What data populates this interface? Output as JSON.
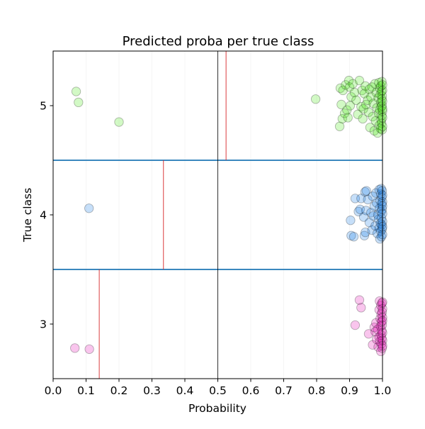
{
  "chart_data": {
    "type": "scatter",
    "title": "Predicted proba per true class",
    "xlabel": "Probability",
    "ylabel": "True class",
    "xlim": [
      0.0,
      1.0
    ],
    "ylim": [
      2.5,
      5.5
    ],
    "xticks": [
      "0.0",
      "0.1",
      "0.2",
      "0.3",
      "0.4",
      "0.5",
      "0.6",
      "0.7",
      "0.8",
      "0.9",
      "1.0"
    ],
    "yticks": [
      "3",
      "4",
      "5"
    ],
    "x_grid": true,
    "reference_line_x": 0.5,
    "class_separators_y": [
      3.5,
      4.5
    ],
    "threshold_lines": [
      {
        "class": 3,
        "x": 0.14
      },
      {
        "class": 4,
        "x": 0.335
      },
      {
        "class": 5,
        "x": 0.525
      }
    ],
    "colors": {
      "class_3": "#e619b7",
      "class_4": "#1a80e6",
      "class_5": "#4ce619",
      "separator": "#1f77b4",
      "threshold": "#d62728",
      "reference": "#000000"
    },
    "series": [
      {
        "class": 3,
        "points": [
          [
            0.066,
            2.78
          ],
          [
            0.11,
            2.77
          ],
          [
            0.917,
            2.99
          ],
          [
            0.93,
            3.22
          ],
          [
            0.935,
            3.15
          ],
          [
            0.958,
            2.91
          ],
          [
            0.97,
            2.81
          ],
          [
            0.975,
            2.97
          ],
          [
            0.978,
            2.93
          ],
          [
            0.98,
            3.01
          ],
          [
            0.982,
            2.86
          ],
          [
            0.985,
            2.95
          ],
          [
            0.987,
            2.79
          ],
          [
            0.99,
            3.13
          ],
          [
            0.99,
            2.88
          ],
          [
            0.991,
            3.21
          ],
          [
            0.992,
            2.84
          ],
          [
            0.993,
            3.05
          ],
          [
            0.994,
            2.98
          ],
          [
            0.995,
            3.17
          ],
          [
            0.995,
            2.75
          ],
          [
            0.996,
            2.9
          ],
          [
            0.996,
            3.09
          ],
          [
            0.997,
            2.82
          ],
          [
            0.997,
            3.02
          ],
          [
            0.998,
            2.94
          ],
          [
            0.998,
            3.19
          ],
          [
            0.998,
            2.87
          ],
          [
            0.999,
            3.11
          ],
          [
            0.999,
            2.78
          ],
          [
            0.999,
            2.99
          ],
          [
            1.0,
            3.06
          ],
          [
            1.0,
            2.85
          ],
          [
            1.0,
            3.14
          ],
          [
            1.0,
            2.92
          ],
          [
            1.0,
            3.2
          ],
          [
            1.0,
            2.8
          ],
          [
            1.0,
            3.03
          ]
        ]
      },
      {
        "class": 4,
        "points": [
          [
            0.109,
            4.06
          ],
          [
            0.903,
            3.95
          ],
          [
            0.905,
            3.81
          ],
          [
            0.913,
            3.8
          ],
          [
            0.917,
            4.15
          ],
          [
            0.927,
            4.03
          ],
          [
            0.932,
            4.05
          ],
          [
            0.935,
            4.15
          ],
          [
            0.943,
            3.98
          ],
          [
            0.945,
            3.81
          ],
          [
            0.947,
            4.21
          ],
          [
            0.948,
            3.84
          ],
          [
            0.95,
            4.04
          ],
          [
            0.951,
            4.22
          ],
          [
            0.955,
            4.14
          ],
          [
            0.96,
            3.93
          ],
          [
            0.965,
            4.02
          ],
          [
            0.968,
            3.86
          ],
          [
            0.97,
            4.17
          ],
          [
            0.972,
            3.99
          ],
          [
            0.975,
            4.08
          ],
          [
            0.978,
            3.9
          ],
          [
            0.98,
            4.2
          ],
          [
            0.982,
            4.11
          ],
          [
            0.984,
            3.83
          ],
          [
            0.986,
            4.0
          ],
          [
            0.988,
            3.96
          ],
          [
            0.99,
            4.23
          ],
          [
            0.99,
            3.88
          ],
          [
            0.991,
            4.06
          ],
          [
            0.992,
            3.78
          ],
          [
            0.993,
            4.13
          ],
          [
            0.994,
            3.92
          ],
          [
            0.995,
            4.19
          ],
          [
            0.995,
            3.85
          ],
          [
            0.996,
            4.03
          ],
          [
            0.996,
            4.24
          ],
          [
            0.997,
            3.97
          ],
          [
            0.997,
            3.8
          ],
          [
            0.998,
            4.1
          ],
          [
            0.998,
            3.91
          ],
          [
            0.998,
            4.16
          ],
          [
            0.999,
            3.87
          ],
          [
            0.999,
            4.05
          ],
          [
            0.999,
            4.22
          ],
          [
            1.0,
            3.94
          ],
          [
            1.0,
            4.12
          ],
          [
            1.0,
            3.82
          ],
          [
            1.0,
            4.01
          ],
          [
            1.0,
            4.18
          ],
          [
            1.0,
            3.89
          ],
          [
            1.0,
            4.08
          ]
        ]
      },
      {
        "class": 5,
        "points": [
          [
            0.07,
            5.13
          ],
          [
            0.077,
            5.03
          ],
          [
            0.2,
            4.85
          ],
          [
            0.797,
            5.06
          ],
          [
            0.87,
            4.81
          ],
          [
            0.872,
            5.16
          ],
          [
            0.875,
            5.01
          ],
          [
            0.878,
            4.88
          ],
          [
            0.88,
            5.14
          ],
          [
            0.885,
            4.93
          ],
          [
            0.888,
            5.19
          ],
          [
            0.892,
            4.96
          ],
          [
            0.895,
            4.89
          ],
          [
            0.898,
            5.23
          ],
          [
            0.9,
            5.17
          ],
          [
            0.902,
            5.0
          ],
          [
            0.905,
            5.08
          ],
          [
            0.91,
            5.2
          ],
          [
            0.915,
            5.12
          ],
          [
            0.92,
            5.05
          ],
          [
            0.925,
            4.92
          ],
          [
            0.93,
            5.23
          ],
          [
            0.935,
            4.99
          ],
          [
            0.938,
            5.14
          ],
          [
            0.94,
            4.88
          ],
          [
            0.942,
            4.97
          ],
          [
            0.945,
            5.11
          ],
          [
            0.948,
            5.18
          ],
          [
            0.95,
            5.01
          ],
          [
            0.955,
            5.05
          ],
          [
            0.958,
            4.94
          ],
          [
            0.96,
            5.15
          ],
          [
            0.962,
            4.8
          ],
          [
            0.965,
            5.08
          ],
          [
            0.968,
            5.17
          ],
          [
            0.97,
            4.9
          ],
          [
            0.972,
            5.02
          ],
          [
            0.975,
            4.77
          ],
          [
            0.977,
            5.2
          ],
          [
            0.979,
            4.86
          ],
          [
            0.981,
            5.12
          ],
          [
            0.983,
            4.98
          ],
          [
            0.985,
            4.75
          ],
          [
            0.987,
            5.07
          ],
          [
            0.988,
            4.93
          ],
          [
            0.989,
            5.21
          ],
          [
            0.99,
            4.82
          ],
          [
            0.991,
            5.16
          ],
          [
            0.992,
            4.96
          ],
          [
            0.993,
            5.1
          ],
          [
            0.994,
            4.79
          ],
          [
            0.995,
            5.03
          ],
          [
            0.995,
            5.18
          ],
          [
            0.996,
            4.87
          ],
          [
            0.996,
            4.99
          ],
          [
            0.997,
            5.13
          ],
          [
            0.997,
            4.84
          ],
          [
            0.998,
            5.06
          ],
          [
            0.998,
            4.91
          ],
          [
            0.998,
            5.22
          ],
          [
            0.999,
            4.78
          ],
          [
            0.999,
            5.0
          ],
          [
            0.999,
            5.09
          ],
          [
            1.0,
            4.95
          ],
          [
            1.0,
            5.14
          ],
          [
            1.0,
            4.81
          ],
          [
            1.0,
            5.04
          ],
          [
            1.0,
            4.89
          ],
          [
            1.0,
            5.19
          ],
          [
            1.0,
            4.97
          ]
        ]
      }
    ]
  }
}
